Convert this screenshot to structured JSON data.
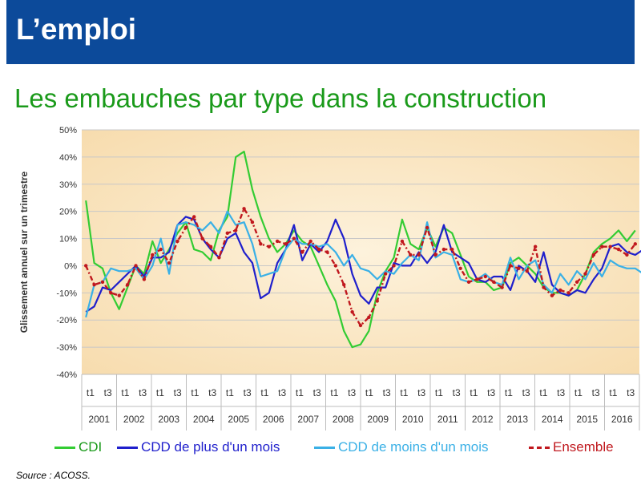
{
  "header": {
    "title": "L’emploi"
  },
  "subtitle": "Les embauches par type dans la construction",
  "source": "Source : ACOSS.",
  "chart_data": {
    "type": "line",
    "title": "Les embauches par type dans la construction",
    "ylabel": "Glissement annuel sur un trimestre",
    "xlabel": "",
    "ylim": [
      -40,
      50
    ],
    "yticks": [
      -40,
      -30,
      -20,
      -10,
      0,
      10,
      20,
      30,
      40,
      50
    ],
    "ytick_labels": [
      "-40%",
      "-30%",
      "-20%",
      "-10%",
      "0%",
      "10%",
      "20%",
      "30%",
      "40%",
      "50%"
    ],
    "years": [
      "2001",
      "2002",
      "2003",
      "2004",
      "2005",
      "2006",
      "2007",
      "2008",
      "2009",
      "2010",
      "2011",
      "2012",
      "2013",
      "2014",
      "2015",
      "2016"
    ],
    "quarter_tick_labels": [
      "t1",
      "t3"
    ],
    "grid": "horizontal",
    "legend_position": "bottom",
    "series": [
      {
        "name": "CDI",
        "color": "#33cc33",
        "style": "solid",
        "values": [
          24,
          1,
          -1,
          -10,
          -16,
          -8,
          0,
          -3,
          9,
          1,
          6,
          12,
          16,
          6,
          5,
          2,
          13,
          18,
          40,
          42,
          28,
          18,
          10,
          5,
          8,
          13,
          9,
          7,
          0,
          -7,
          -13,
          -24,
          -30,
          -29,
          -24,
          -10,
          -2,
          3,
          17,
          8,
          6,
          14,
          7,
          14,
          12,
          4,
          -4,
          -6,
          -6,
          -9,
          -8,
          1,
          3,
          0,
          -3,
          -8,
          -10,
          -10,
          -11,
          -9,
          -3,
          5,
          8,
          10,
          13,
          9,
          13
        ]
      },
      {
        "name": "CDD de plus d'un mois",
        "color": "#1f1fcc",
        "style": "solid",
        "values": [
          -17,
          -15,
          -8,
          -9,
          -6,
          -3,
          0,
          -4,
          3,
          3,
          5,
          15,
          18,
          17,
          10,
          6,
          3,
          10,
          12,
          5,
          1,
          -12,
          -10,
          1,
          6,
          15,
          2,
          8,
          5,
          9,
          17,
          10,
          -3,
          -11,
          -14,
          -8,
          -8,
          1,
          0,
          0,
          5,
          1,
          5,
          15,
          5,
          3,
          1,
          -5,
          -6,
          -4,
          -4,
          -9,
          0,
          -2,
          -6,
          5,
          -7,
          -10,
          -11,
          -9,
          -10,
          -5,
          -1,
          7,
          8,
          5,
          4,
          6
        ]
      },
      {
        "name": "CDD de moins d'un mois",
        "color": "#3ab0e6",
        "style": "solid",
        "values": [
          -19,
          -7,
          -6,
          -1,
          -2,
          -2,
          -1,
          -5,
          0,
          10,
          -3,
          15,
          16,
          15,
          13,
          16,
          12,
          20,
          15,
          16,
          8,
          -4,
          -3,
          -2,
          6,
          10,
          8,
          8,
          7,
          8,
          5,
          0,
          4,
          -1,
          -2,
          -5,
          -2,
          -3,
          1,
          4,
          2,
          16,
          3,
          5,
          4,
          -5,
          -6,
          -5,
          -3,
          -6,
          -7,
          3,
          -5,
          0,
          2,
          -7,
          -10,
          -3,
          -7,
          -2,
          -5,
          1,
          -4,
          2,
          0,
          -1,
          -1,
          -3
        ]
      },
      {
        "name": "Ensemble",
        "color": "#c0181e",
        "style": "dashdot",
        "values": [
          0,
          -7,
          -6,
          -10,
          -11,
          -7,
          0,
          -5,
          4,
          6,
          1,
          9,
          14,
          18,
          10,
          7,
          3,
          12,
          13,
          21,
          16,
          8,
          7,
          9,
          8,
          10,
          5,
          9,
          6,
          5,
          0,
          -7,
          -17,
          -22,
          -19,
          -13,
          -3,
          0,
          9,
          4,
          4,
          14,
          4,
          6,
          6,
          -1,
          -6,
          -5,
          -4,
          -6,
          -8,
          0,
          -1,
          -2,
          7,
          -8,
          -11,
          -9,
          -10,
          -6,
          -3,
          4,
          7,
          7,
          6,
          4,
          8
        ]
      }
    ]
  }
}
